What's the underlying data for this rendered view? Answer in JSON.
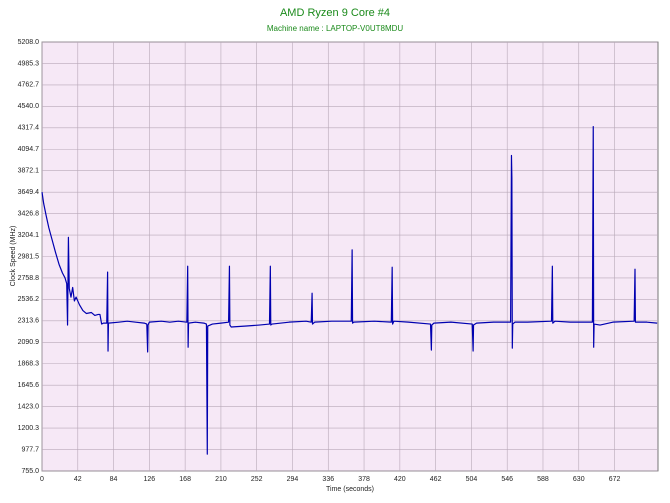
{
  "chart_data": {
    "type": "line",
    "title": "AMD Ryzen 9 Core #4",
    "subtitle": "Machine name : LAPTOP-V0UT8MDU",
    "x_label": "Time (seconds)",
    "y_label": "Clock Speed (MHz)",
    "xlim": [
      0,
      723
    ],
    "xticks": [
      0,
      42,
      84,
      126,
      168,
      210,
      252,
      294,
      336,
      378,
      420,
      462,
      504,
      546,
      588,
      630,
      672
    ],
    "ylim": [
      755,
      5208
    ],
    "yticks": [
      {
        "value": 755,
        "label": "755.0"
      },
      977.7,
      1200.3,
      {
        "value": 1423,
        "label": "1423.0"
      },
      1645.6,
      1868.3,
      2090.9,
      2313.6,
      2536.2,
      2758.8,
      2981.5,
      3204.1,
      3426.8,
      3649.4,
      3872.1,
      4094.7,
      4317.4,
      {
        "value": 4540,
        "label": "4540.0"
      },
      4762.7,
      4985.3,
      {
        "value": 5208,
        "label": "5208.0"
      }
    ],
    "grid": true,
    "series": [
      {
        "name": "AMD Ryzen 9 Core #4",
        "color": "#0000b0",
        "x": [
          0,
          2,
          5,
          8,
          12,
          16,
          20,
          24,
          27,
          29,
          30,
          31,
          32,
          34,
          36,
          38,
          40,
          44,
          48,
          52,
          58,
          62,
          66,
          68,
          70,
          72,
          76,
          77,
          77.5,
          78,
          90,
          100,
          110,
          120,
          123,
          124,
          124.5,
          126,
          140,
          150,
          160,
          170,
          171,
          171.5,
          172,
          180,
          190,
          193,
          194,
          194.5,
          200,
          210,
          219,
          220,
          220.5,
          222,
          240,
          255,
          267,
          268,
          268.5,
          270,
          290,
          310,
          316,
          317,
          317.5,
          320,
          340,
          363,
          364,
          364.5,
          366,
          390,
          410,
          411,
          411.5,
          413,
          430,
          456,
          457,
          457.5,
          460,
          480,
          505,
          506,
          506.5,
          510,
          530,
          550,
          551,
          551.5,
          552,
          552.5,
          555,
          570,
          598,
          599,
          599.5,
          602,
          620,
          646,
          647,
          647.5,
          648,
          655,
          670,
          695,
          696,
          696.5,
          710,
          722
        ],
        "values": [
          3650,
          3530,
          3400,
          3280,
          3150,
          3020,
          2900,
          2810,
          2760,
          2700,
          2270,
          3180,
          2650,
          2560,
          2660,
          2520,
          2560,
          2480,
          2420,
          2390,
          2400,
          2370,
          2380,
          2380,
          2280,
          2290,
          2290,
          2820,
          2000,
          2290,
          2300,
          2310,
          2300,
          2290,
          2280,
          1990,
          2270,
          2300,
          2310,
          2300,
          2310,
          2300,
          2880,
          2040,
          2290,
          2300,
          2290,
          2280,
          930,
          2260,
          2280,
          2290,
          2300,
          2880,
          2270,
          2250,
          2260,
          2270,
          2280,
          2880,
          2270,
          2280,
          2300,
          2310,
          2300,
          2600,
          2280,
          2300,
          2310,
          2310,
          3050,
          2290,
          2300,
          2310,
          2300,
          2870,
          2280,
          2310,
          2300,
          2280,
          2010,
          2270,
          2290,
          2300,
          2280,
          2000,
          2270,
          2290,
          2300,
          2300,
          4030,
          3800,
          2030,
          2280,
          2300,
          2300,
          2310,
          2880,
          2290,
          2310,
          2300,
          2300,
          4330,
          2040,
          2280,
          2270,
          2300,
          2310,
          2850,
          2300,
          2300,
          2290
        ]
      }
    ]
  }
}
